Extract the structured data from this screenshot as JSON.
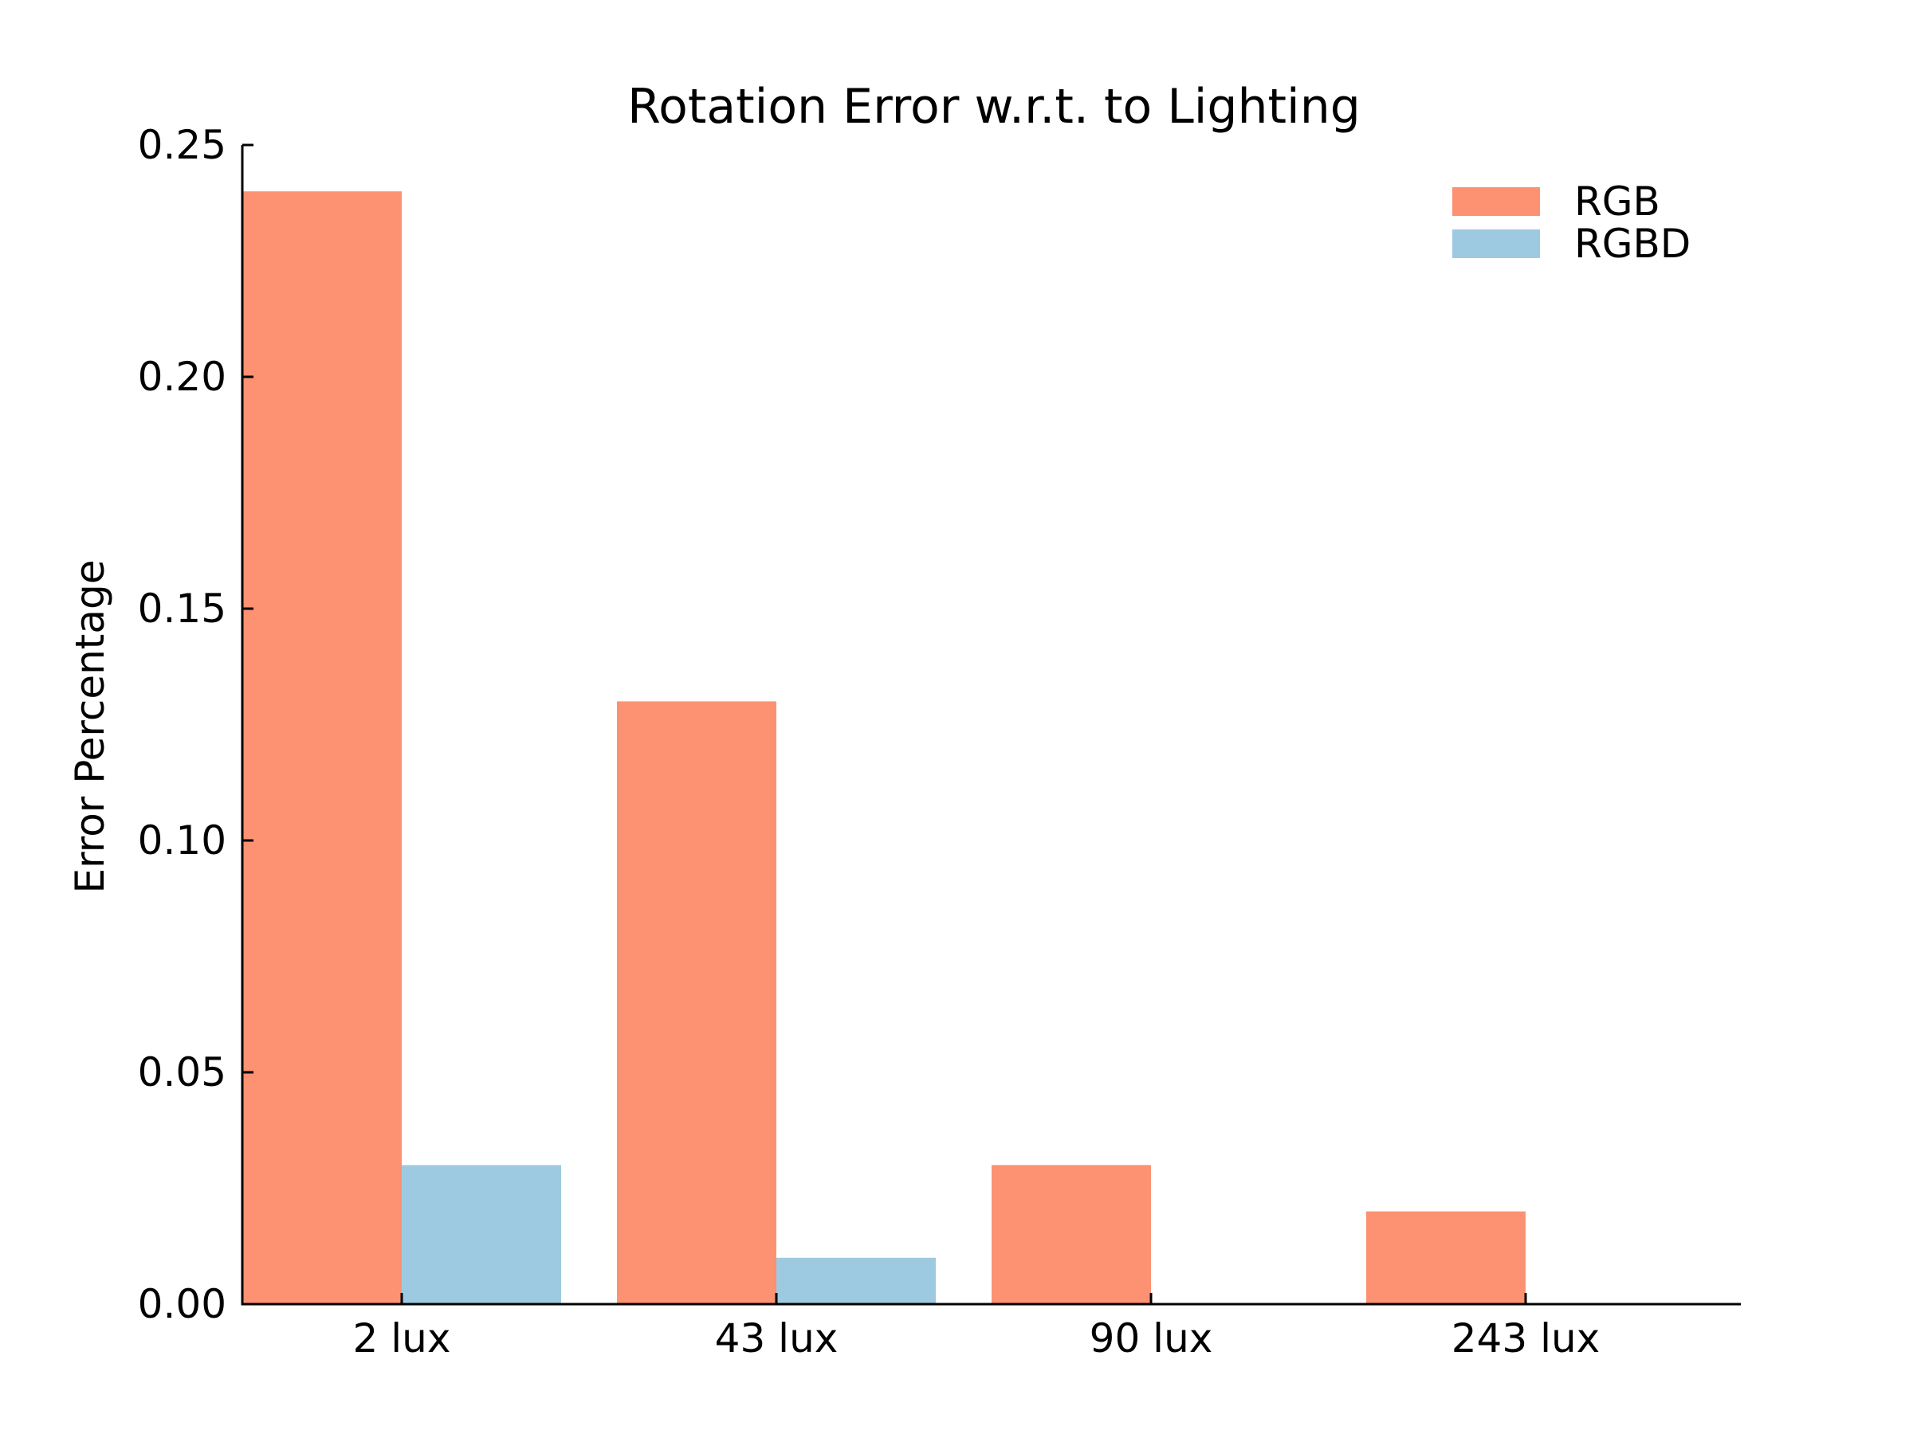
{
  "chart_data": {
    "type": "bar",
    "title": "Rotation Error w.r.t. to Lighting",
    "xlabel": "",
    "ylabel": "Error Percentage",
    "categories": [
      "2 lux",
      "43 lux",
      "90 lux",
      "243 lux"
    ],
    "series": [
      {
        "name": "RGB",
        "color": "#FC9272",
        "values": [
          0.24,
          0.13,
          0.03,
          0.02
        ]
      },
      {
        "name": "RGBD",
        "color": "#9ECAE1",
        "values": [
          0.03,
          0.01,
          0.0,
          0.0
        ]
      }
    ],
    "ylim": [
      0,
      0.25
    ],
    "yticks": [
      "0.00",
      "0.05",
      "0.10",
      "0.15",
      "0.20",
      "0.25"
    ],
    "grid": false,
    "legend": "top-right"
  }
}
